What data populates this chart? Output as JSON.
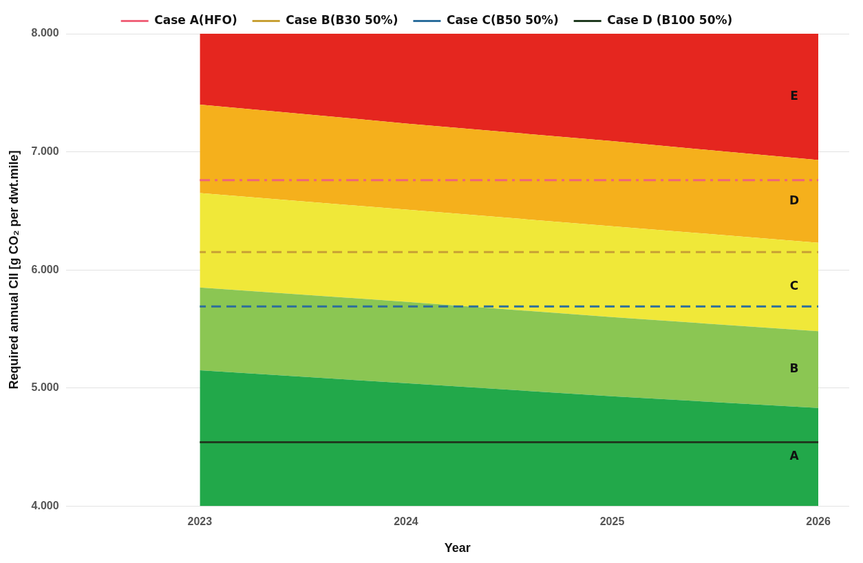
{
  "chart_data": {
    "type": "area",
    "xlabel": "Year",
    "ylabel": "Required annual CII [g CO₂ per dwt.mile]",
    "x": [
      2023,
      2024,
      2025,
      2026
    ],
    "xlim": [
      2022.35,
      2026.15
    ],
    "xticks": [
      2023,
      2024,
      2025,
      2026
    ],
    "ylim": [
      4,
      8
    ],
    "yticks": [
      {
        "value": 4,
        "label": "4.000"
      },
      {
        "value": 5,
        "label": "5.000"
      },
      {
        "value": 6,
        "label": "6.000"
      },
      {
        "value": 7,
        "label": "7.000"
      },
      {
        "value": 8,
        "label": "8.000"
      }
    ],
    "grid": "y",
    "legend": "top",
    "series": [
      {
        "name": "A",
        "type": "area",
        "color": "#22a84a",
        "values": [
          5.15,
          5.04,
          4.93,
          4.83
        ]
      },
      {
        "name": "B",
        "type": "area",
        "color": "#8bc653",
        "values": [
          5.85,
          5.73,
          5.6,
          5.48
        ]
      },
      {
        "name": "C",
        "type": "area",
        "color": "#f0e839",
        "values": [
          6.65,
          6.51,
          6.37,
          6.23
        ]
      },
      {
        "name": "D",
        "type": "area",
        "color": "#f5b01c",
        "values": [
          7.4,
          7.24,
          7.09,
          6.93
        ]
      },
      {
        "name": "E",
        "type": "area",
        "color": "#e5261f",
        "values": [
          8,
          8,
          8,
          8
        ]
      },
      {
        "name": "Case A(HFO)",
        "type": "line",
        "line_style": "dashdot",
        "color": "#f0637a",
        "values": [
          6.76,
          6.76,
          6.76,
          6.76
        ]
      },
      {
        "name": "Case B(B30 50%)",
        "type": "line",
        "line_style": "dashed",
        "color": "#c8a035",
        "values": [
          6.15,
          6.15,
          6.15,
          6.15
        ]
      },
      {
        "name": "Case C(B50 50%)",
        "type": "line",
        "line_style": "dashed",
        "color": "#2c6e9c",
        "values": [
          5.69,
          5.69,
          5.69,
          5.69
        ]
      },
      {
        "name": "Case D (B100 50%)",
        "type": "line",
        "line_style": "solid",
        "color": "#1f3a1f",
        "values": [
          4.54,
          4.54,
          4.54,
          4.54
        ]
      }
    ]
  }
}
